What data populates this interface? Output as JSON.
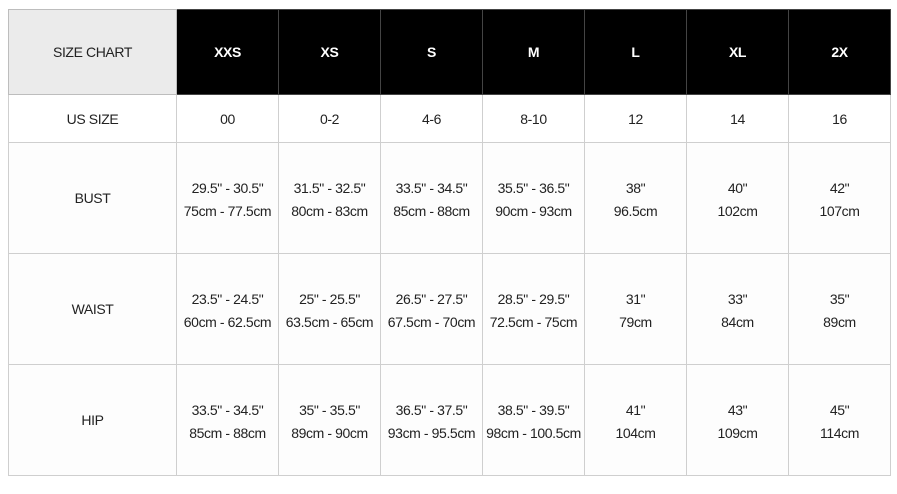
{
  "header": {
    "corner": "SIZE CHART",
    "sizes": [
      "XXS",
      "XS",
      "S",
      "M",
      "L",
      "XL",
      "2X"
    ]
  },
  "us_size": {
    "label": "US SIZE",
    "values": [
      "00",
      "0-2",
      "4-6",
      "8-10",
      "12",
      "14",
      "16"
    ]
  },
  "rows": [
    {
      "label": "BUST",
      "cells": [
        {
          "in": "29.5\" - 30.5\"",
          "cm": "75cm - 77.5cm"
        },
        {
          "in": "31.5\" - 32.5\"",
          "cm": "80cm - 83cm"
        },
        {
          "in": "33.5\" - 34.5\"",
          "cm": "85cm - 88cm"
        },
        {
          "in": "35.5\" - 36.5\"",
          "cm": "90cm - 93cm"
        },
        {
          "in": "38\"",
          "cm": "96.5cm"
        },
        {
          "in": "40\"",
          "cm": "102cm"
        },
        {
          "in": "42\"",
          "cm": "107cm"
        }
      ]
    },
    {
      "label": "WAIST",
      "cells": [
        {
          "in": "23.5\" - 24.5\"",
          "cm": "60cm - 62.5cm"
        },
        {
          "in": "25\" - 25.5\"",
          "cm": "63.5cm - 65cm"
        },
        {
          "in": "26.5\" - 27.5\"",
          "cm": "67.5cm - 70cm"
        },
        {
          "in": "28.5\" - 29.5\"",
          "cm": "72.5cm - 75cm"
        },
        {
          "in": "31\"",
          "cm": "79cm"
        },
        {
          "in": "33\"",
          "cm": "84cm"
        },
        {
          "in": "35\"",
          "cm": "89cm"
        }
      ]
    },
    {
      "label": "HIP",
      "cells": [
        {
          "in": "33.5\" - 34.5\"",
          "cm": "85cm - 88cm"
        },
        {
          "in": "35\" - 35.5\"",
          "cm": "89cm - 90cm"
        },
        {
          "in": "36.5\" - 37.5\"",
          "cm": "93cm - 95.5cm"
        },
        {
          "in": "38.5\" - 39.5\"",
          "cm": "98cm - 100.5cm"
        },
        {
          "in": "41\"",
          "cm": "104cm"
        },
        {
          "in": "43\"",
          "cm": "109cm"
        },
        {
          "in": "45\"",
          "cm": "114cm"
        }
      ]
    }
  ]
}
